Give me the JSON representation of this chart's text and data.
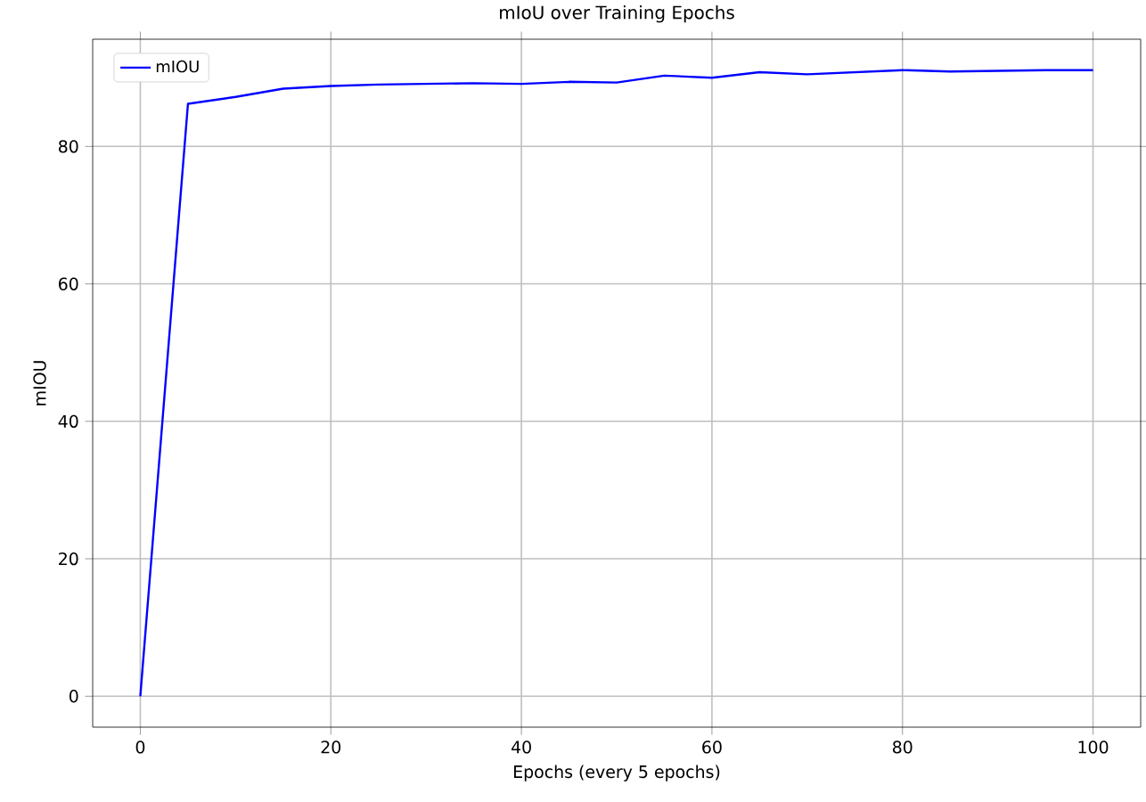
{
  "chart_data": {
    "type": "line",
    "title": "mIoU over Training Epochs",
    "xlabel": "Epochs (every 5 epochs)",
    "ylabel": "mIOU",
    "x": [
      0,
      5,
      10,
      15,
      20,
      25,
      30,
      35,
      40,
      45,
      50,
      55,
      60,
      65,
      70,
      75,
      80,
      85,
      90,
      95,
      100
    ],
    "series": [
      {
        "name": "mIOU",
        "color": "#0000ff",
        "values": [
          0,
          86.2,
          87.2,
          88.4,
          88.8,
          89.0,
          89.1,
          89.2,
          89.1,
          89.4,
          89.3,
          90.3,
          90.0,
          90.8,
          90.5,
          90.8,
          91.1,
          90.9,
          91.0,
          91.1,
          91.1
        ]
      }
    ],
    "xlim": [
      -5,
      105
    ],
    "ylim": [
      -4.5,
      95.6
    ],
    "xticks": [
      0,
      20,
      40,
      60,
      80,
      100
    ],
    "yticks": [
      0,
      20,
      40,
      60,
      80
    ],
    "grid": true,
    "legend": "top left",
    "marker": "none",
    "line_style": "solid"
  }
}
